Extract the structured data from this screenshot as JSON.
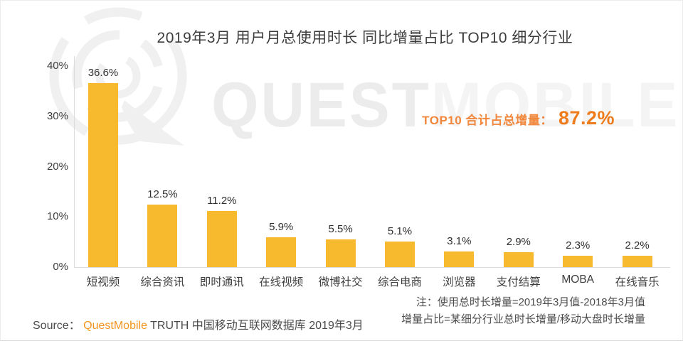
{
  "title": "2019年3月 用户月总使用时长 同比增量占比 TOP10 细分行业",
  "watermark": {
    "logo_name": "questmobile-logo",
    "text_left": "QUEST",
    "text_right": "MOBILE"
  },
  "highlight": {
    "label": "TOP10 合计占总增量：",
    "value": "87.2%"
  },
  "source": {
    "prefix": "Source：",
    "brand": "QuestMobile",
    "suffix": " TRUTH 中国移动互联网数据库 2019年3月"
  },
  "note": {
    "line1": "注：使用总时长增量=2019年3月值-2018年3月值",
    "line2": "增量占比=某细分行业总时长增量/移动大盘时长增量"
  },
  "colors": {
    "bar": "#F7BA2E",
    "highlight_label": "#f0873c",
    "highlight_value": "#ee7c1d",
    "source_brand": "#f3941e",
    "axis_line": "#dcdcdc",
    "text_dark": "#3c3c3c",
    "watermark_gray": "#efefef"
  },
  "chart_data": {
    "type": "bar",
    "title": "2019年3月 用户月总使用时长 同比增量占比 TOP10 细分行业",
    "categories": [
      "短视频",
      "综合资讯",
      "即时通讯",
      "在线视频",
      "微博社交",
      "综合电商",
      "浏览器",
      "支付结算",
      "MOBA",
      "在线音乐"
    ],
    "values": [
      36.6,
      12.5,
      11.2,
      5.9,
      5.5,
      5.1,
      3.1,
      2.9,
      2.3,
      2.2
    ],
    "data_labels": [
      "36.6%",
      "12.5%",
      "11.2%",
      "5.9%",
      "5.5%",
      "5.1%",
      "3.1%",
      "2.9%",
      "2.3%",
      "2.2%"
    ],
    "unit": "%",
    "xlabel": "",
    "ylabel": "",
    "ylim": [
      0,
      40
    ],
    "yticks": [
      0,
      10,
      20,
      30,
      40
    ],
    "ytick_labels": [
      "0%",
      "10%",
      "20%",
      "30%",
      "40%"
    ],
    "grid": false,
    "legend": null,
    "total_note": "TOP10 合计占总增量 87.2%"
  }
}
